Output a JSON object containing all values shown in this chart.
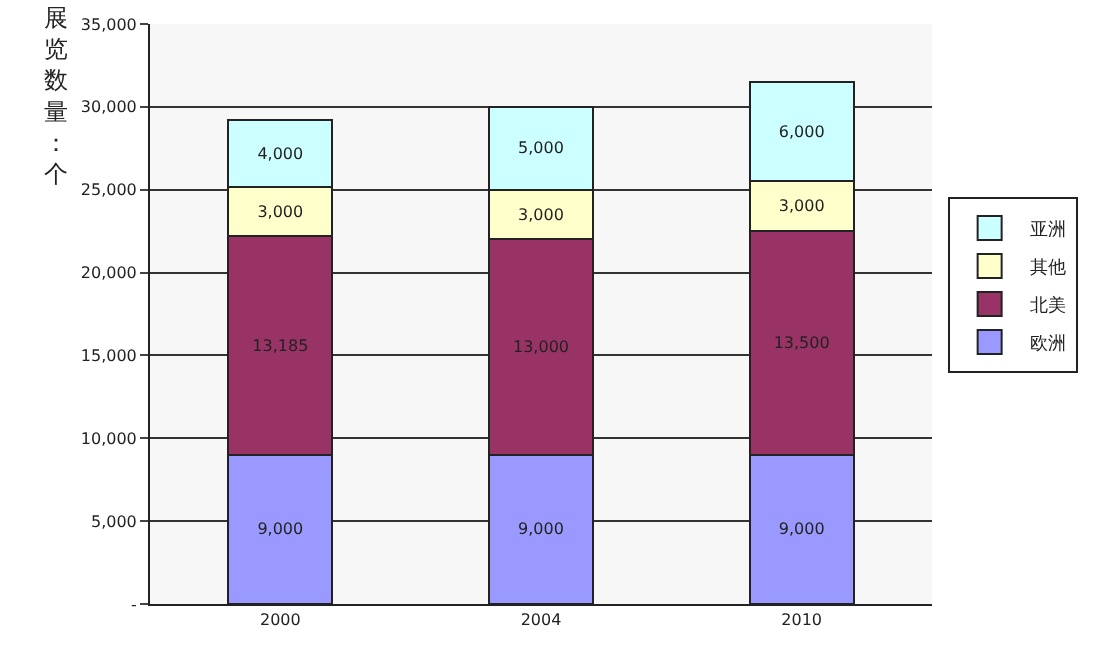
{
  "chart_data": {
    "type": "bar",
    "stacked": true,
    "ylabel": "展览数量：个",
    "categories": [
      "2000",
      "2004",
      "2010"
    ],
    "series": [
      {
        "name": "欧洲",
        "color": "#9999ff",
        "values": [
          9000,
          9000,
          9000
        ],
        "value_labels": [
          "9,000",
          "9,000",
          "9,000"
        ]
      },
      {
        "name": "北美",
        "color": "#993366",
        "values": [
          13185,
          13000,
          13500
        ],
        "value_labels": [
          "13,185",
          "13,000",
          "13,500"
        ]
      },
      {
        "name": "其他",
        "color": "#ffffcc",
        "values": [
          3000,
          3000,
          3000
        ],
        "value_labels": [
          "3,000",
          "3,000",
          "3,000"
        ]
      },
      {
        "name": "亚洲",
        "color": "#ccffff",
        "values": [
          4000,
          5000,
          6000
        ],
        "value_labels": [
          "4,000",
          "5,000",
          "6,000"
        ]
      }
    ],
    "ylim": [
      0,
      35000
    ],
    "yticks": [
      {
        "value": 0,
        "label": "-"
      },
      {
        "value": 5000,
        "label": "5,000"
      },
      {
        "value": 10000,
        "label": "10,000"
      },
      {
        "value": 15000,
        "label": "15,000"
      },
      {
        "value": 20000,
        "label": "20,000"
      },
      {
        "value": 25000,
        "label": "25,000"
      },
      {
        "value": 30000,
        "label": "30,000"
      },
      {
        "value": 35000,
        "label": "35,000"
      }
    ],
    "grid": "y",
    "legend": "right"
  }
}
